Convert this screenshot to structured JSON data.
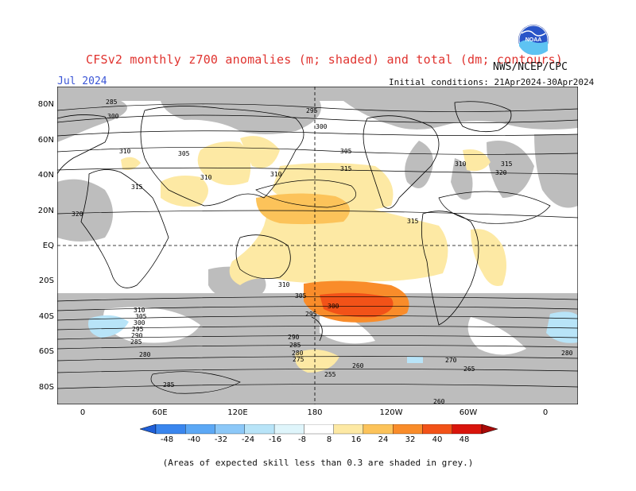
{
  "header": {
    "title": "CFSv2 monthly z700 anomalies (m; shaded) and total (dm; contours)",
    "month": "Jul 2024",
    "initial_conditions": "Initial conditions: 21Apr2024-30Apr2024",
    "org": "NWS/NCEP/CPC",
    "logo": "NOAA"
  },
  "map": {
    "lat_labels": [
      "80N",
      "60N",
      "40N",
      "20N",
      "EQ",
      "20S",
      "40S",
      "60S",
      "80S"
    ],
    "lon_labels": [
      "0",
      "60E",
      "120E",
      "180",
      "120W",
      "60W",
      "0"
    ],
    "contour_labels": [
      "285",
      "295",
      "300",
      "300",
      "305",
      "305",
      "310",
      "310",
      "310",
      "310",
      "315",
      "315",
      "315",
      "320",
      "320",
      "315",
      "310",
      "305",
      "300",
      "295",
      "290",
      "285",
      "280",
      "275",
      "270",
      "265",
      "260",
      "255",
      "310",
      "305",
      "300",
      "295",
      "290",
      "285",
      "280",
      "285",
      "280",
      "260"
    ],
    "skill_mask_color": "#bdbdbd",
    "land_outline_color": "#000000"
  },
  "colorbar": {
    "labels": [
      "-48",
      "-40",
      "-32",
      "-24",
      "-16",
      "-8",
      "8",
      "16",
      "24",
      "32",
      "40",
      "48"
    ],
    "colors": [
      "#1f5fd8",
      "#3a86ee",
      "#5ca8f5",
      "#8cc8f8",
      "#b8e4f8",
      "#dff5fb",
      "#ffffff",
      "#fde9a4",
      "#fcc35a",
      "#f98c2a",
      "#f25218",
      "#d9150c",
      "#a80a08"
    ]
  },
  "footnote": "(Areas of expected skill less than 0.3 are shaded in grey.)"
}
